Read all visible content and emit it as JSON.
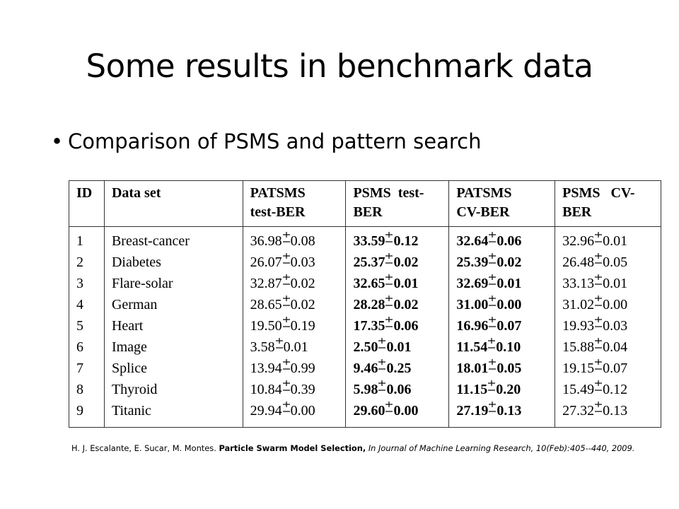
{
  "slide": {
    "title": "Some results in benchmark data",
    "bullet": "Comparison of PSMS and pattern search"
  },
  "table": {
    "headers": [
      "ID",
      "Data set",
      "PATSMS test-BER",
      "PSMS test-BER",
      "PATSMS CV-BER",
      "PSMS CV-BER"
    ],
    "header_lines": [
      [
        "ID"
      ],
      [
        "Data set"
      ],
      [
        "PATSMS",
        "test-BER"
      ],
      [
        "PSMS  test-",
        "BER"
      ],
      [
        "PATSMS",
        "CV-BER"
      ],
      [
        "PSMS   CV-",
        "BER"
      ]
    ],
    "bold_columns": [
      3,
      4
    ],
    "rows": [
      {
        "id": "1",
        "dataset": "Breast-cancer",
        "patsms_test": [
          "36.98",
          "0.08"
        ],
        "psms_test": [
          "33.59",
          "0.12"
        ],
        "patsms_cv": [
          "32.64",
          "0.06"
        ],
        "psms_cv": [
          "32.96",
          "0.01"
        ]
      },
      {
        "id": "2",
        "dataset": "Diabetes",
        "patsms_test": [
          "26.07",
          "0.03"
        ],
        "psms_test": [
          "25.37",
          "0.02"
        ],
        "patsms_cv": [
          "25.39",
          "0.02"
        ],
        "psms_cv": [
          "26.48",
          "0.05"
        ]
      },
      {
        "id": "3",
        "dataset": "Flare-solar",
        "patsms_test": [
          "32.87",
          "0.02"
        ],
        "psms_test": [
          "32.65",
          "0.01"
        ],
        "patsms_cv": [
          "32.69",
          "0.01"
        ],
        "psms_cv": [
          "33.13",
          "0.01"
        ]
      },
      {
        "id": "4",
        "dataset": "German",
        "patsms_test": [
          "28.65",
          "0.02"
        ],
        "psms_test": [
          "28.28",
          "0.02"
        ],
        "patsms_cv": [
          "31.00",
          "0.00"
        ],
        "psms_cv": [
          "31.02",
          "0.00"
        ]
      },
      {
        "id": "5",
        "dataset": "Heart",
        "patsms_test": [
          "19.50",
          "0.19"
        ],
        "psms_test": [
          "17.35",
          "0.06"
        ],
        "patsms_cv": [
          "16.96",
          "0.07"
        ],
        "psms_cv": [
          "19.93",
          "0.03"
        ]
      },
      {
        "id": "6",
        "dataset": "Image",
        "patsms_test": [
          "3.58",
          "0.01"
        ],
        "psms_test": [
          "2.50",
          "0.01"
        ],
        "patsms_cv": [
          "11.54",
          "0.10"
        ],
        "psms_cv": [
          "15.88",
          "0.04"
        ]
      },
      {
        "id": "7",
        "dataset": "Splice",
        "patsms_test": [
          "13.94",
          "0.99"
        ],
        "psms_test": [
          "9.46",
          "0.25"
        ],
        "patsms_cv": [
          "18.01",
          "0.05"
        ],
        "psms_cv": [
          "19.15",
          "0.07"
        ]
      },
      {
        "id": "8",
        "dataset": "Thyroid",
        "patsms_test": [
          "10.84",
          "0.39"
        ],
        "psms_test": [
          "5.98",
          "0.06"
        ],
        "patsms_cv": [
          "11.15",
          "0.20"
        ],
        "psms_cv": [
          "15.49",
          "0.12"
        ]
      },
      {
        "id": "9",
        "dataset": "Titanic",
        "patsms_test": [
          "29.94",
          "0.00"
        ],
        "psms_test": [
          "29.60",
          "0.00"
        ],
        "patsms_cv": [
          "27.19",
          "0.13"
        ],
        "psms_cv": [
          "27.32",
          "0.13"
        ]
      }
    ]
  },
  "citation": {
    "authors": "H. J. Escalante, E. Sucar, M. Montes. ",
    "title": "Particle Swarm Model Selection,",
    "journal": " In Journal of Machine Learning Research, 10(Feb):405--440, 2009."
  }
}
